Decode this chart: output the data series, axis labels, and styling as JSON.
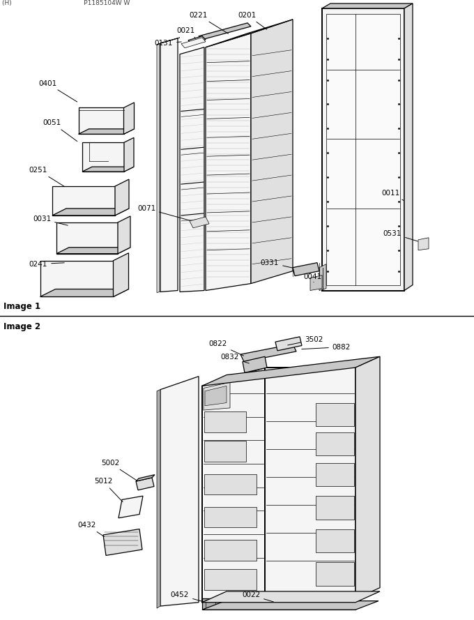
{
  "fig_width": 6.8,
  "fig_height": 8.89,
  "dpi": 100,
  "bg": "#ffffff",
  "lc": "#000000",
  "lc_gray": "#888888",
  "fill_light": "#f5f5f5",
  "fill_mid": "#e0e0e0",
  "fill_dark": "#c8c8c8",
  "fill_darker": "#b0b0b0",
  "lw_thick": 1.4,
  "lw_mid": 0.9,
  "lw_thin": 0.5,
  "lfs": 7.5,
  "sfs": 8.5,
  "image1_label": "Image 1",
  "image2_label": "Image 2",
  "header_text": "(H)                                    P1185104W W"
}
